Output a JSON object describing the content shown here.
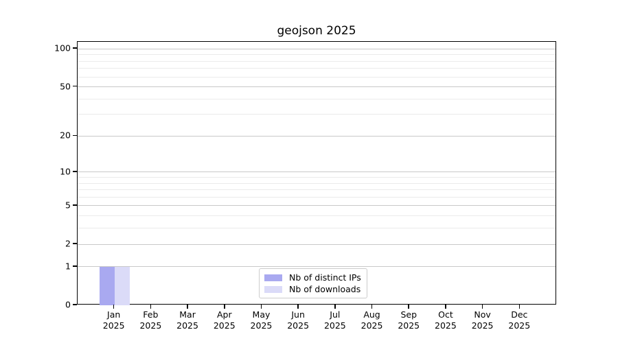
{
  "title": "geojson 2025",
  "chart_data": {
    "type": "bar",
    "title": "geojson 2025",
    "categories": [
      {
        "month": "Jan",
        "year": "2025"
      },
      {
        "month": "Feb",
        "year": "2025"
      },
      {
        "month": "Mar",
        "year": "2025"
      },
      {
        "month": "Apr",
        "year": "2025"
      },
      {
        "month": "May",
        "year": "2025"
      },
      {
        "month": "Jun",
        "year": "2025"
      },
      {
        "month": "Jul",
        "year": "2025"
      },
      {
        "month": "Aug",
        "year": "2025"
      },
      {
        "month": "Sep",
        "year": "2025"
      },
      {
        "month": "Oct",
        "year": "2025"
      },
      {
        "month": "Nov",
        "year": "2025"
      },
      {
        "month": "Dec",
        "year": "2025"
      }
    ],
    "series": [
      {
        "name": "Nb of distinct IPs",
        "color": "#a9a9f0",
        "values": [
          1,
          0,
          0,
          0,
          0,
          0,
          0,
          0,
          0,
          0,
          0,
          0
        ]
      },
      {
        "name": "Nb of downloads",
        "color": "#dbdbf8",
        "values": [
          1,
          0,
          0,
          0,
          0,
          0,
          0,
          0,
          0,
          0,
          0,
          0
        ]
      }
    ],
    "xlabel": "",
    "ylabel": "",
    "yscale": "log1p",
    "ylim": [
      0,
      113.5
    ],
    "yticks_major": [
      0,
      1,
      2,
      5,
      10,
      20,
      50,
      100
    ],
    "yticks_minor": [
      3,
      4,
      6,
      7,
      8,
      9,
      30,
      40,
      60,
      70,
      80,
      90
    ],
    "grid": "horizontal, major and minor",
    "legend_position": "lower center",
    "colors": {
      "major_grid": "#c8c8c8",
      "minor_grid": "#ebebeb",
      "spine": "#000000",
      "text": "#000000",
      "legend_border": "#cccccc"
    }
  }
}
